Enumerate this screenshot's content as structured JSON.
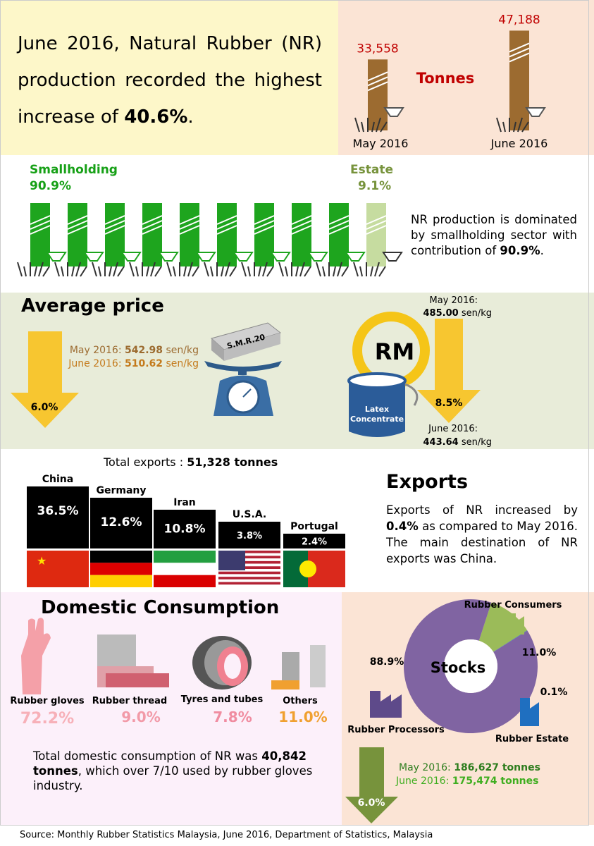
{
  "headline": {
    "before": "June 2016, Natural Rubber (NR) production recorded the highest increase of ",
    "highlight": "40.6%",
    "after": "."
  },
  "production": {
    "unit": "Tonnes",
    "months": [
      {
        "label": "May 2016",
        "value": {
          "value": 33558,
          "label": "33,558"
        }
      },
      {
        "label": "June 2016",
        "value": {
          "value": 47188,
          "label": "47,188"
        }
      }
    ]
  },
  "sectors": {
    "smallholding": {
      "name": "Smallholding",
      "share": "90.9%"
    },
    "estate": {
      "name": "Estate",
      "share": "9.1%"
    },
    "note": {
      "before": "NR production is dominated by smallholding sector with contribution of ",
      "highlight": "90.9%",
      "after": "."
    }
  },
  "average_price": {
    "title": "Average price",
    "smr": {
      "block": "S.M.R.20",
      "change": "6.0%",
      "may": {
        "label": "May 2016:",
        "value": "542.98",
        "unit": "sen/kg"
      },
      "june": {
        "label": "June 2016:",
        "value": "510.62",
        "unit": "sen/kg"
      }
    },
    "latex": {
      "symbol": "RM",
      "can": [
        "Latex",
        "Concentrate"
      ],
      "change": "8.5%",
      "may": {
        "label": "May 2016:",
        "value": "485.00",
        "unit": "sen/kg"
      },
      "june": {
        "label": "June 2016:",
        "value": "443.64",
        "unit": "sen/kg"
      }
    }
  },
  "exports": {
    "total_label": "Total exports :",
    "total": "51,328 tonnes",
    "title": "Exports",
    "countries": [
      {
        "name": "China",
        "share": "36.5%"
      },
      {
        "name": "Germany",
        "share": "12.6%"
      },
      {
        "name": "Iran",
        "share": "10.8%"
      },
      {
        "name": "U.S.A.",
        "share": "3.8%"
      },
      {
        "name": "Portugal",
        "share": "2.4%"
      }
    ],
    "note": {
      "before": "Exports of NR increased by ",
      "highlight": "0.4%",
      "after": " as compared to May 2016. The main destination of NR exports was China."
    }
  },
  "domestic": {
    "title": "Domestic Consumption",
    "items": [
      {
        "name": "Rubber gloves",
        "share": "72.2%"
      },
      {
        "name": "Rubber thread",
        "share": "9.0%"
      },
      {
        "name": "Tyres and tubes",
        "share": "7.8%"
      },
      {
        "name": "Others",
        "share": "11.0%"
      }
    ],
    "note": {
      "before": "Total domestic consumption of NR was ",
      "highlight": "40,842 tonnes",
      "after": ", which over 7/10 used by rubber gloves industry."
    }
  },
  "stocks": {
    "title": "Stocks",
    "segments": [
      {
        "name": "Rubber Consumers",
        "share": {
          "value": 11.0,
          "label": "11.0%"
        },
        "color": "#9bbb59"
      },
      {
        "name": "Rubber Estate",
        "share": {
          "value": 0.1,
          "label": "0.1%"
        },
        "color": "#1f6fc0"
      },
      {
        "name": "Rubber Processors",
        "share": {
          "value": 88.9,
          "label": "88.9%"
        },
        "color": "#8064a2"
      }
    ],
    "change": "6.0%",
    "may": {
      "label": "May 2016:",
      "value": "186,627 tonnes"
    },
    "june": {
      "label": "June 2016:",
      "value": "175,474 tonnes"
    }
  },
  "source": "Source: Monthly Rubber Statistics Malaysia, June 2016, Department of Statistics, Malaysia"
}
